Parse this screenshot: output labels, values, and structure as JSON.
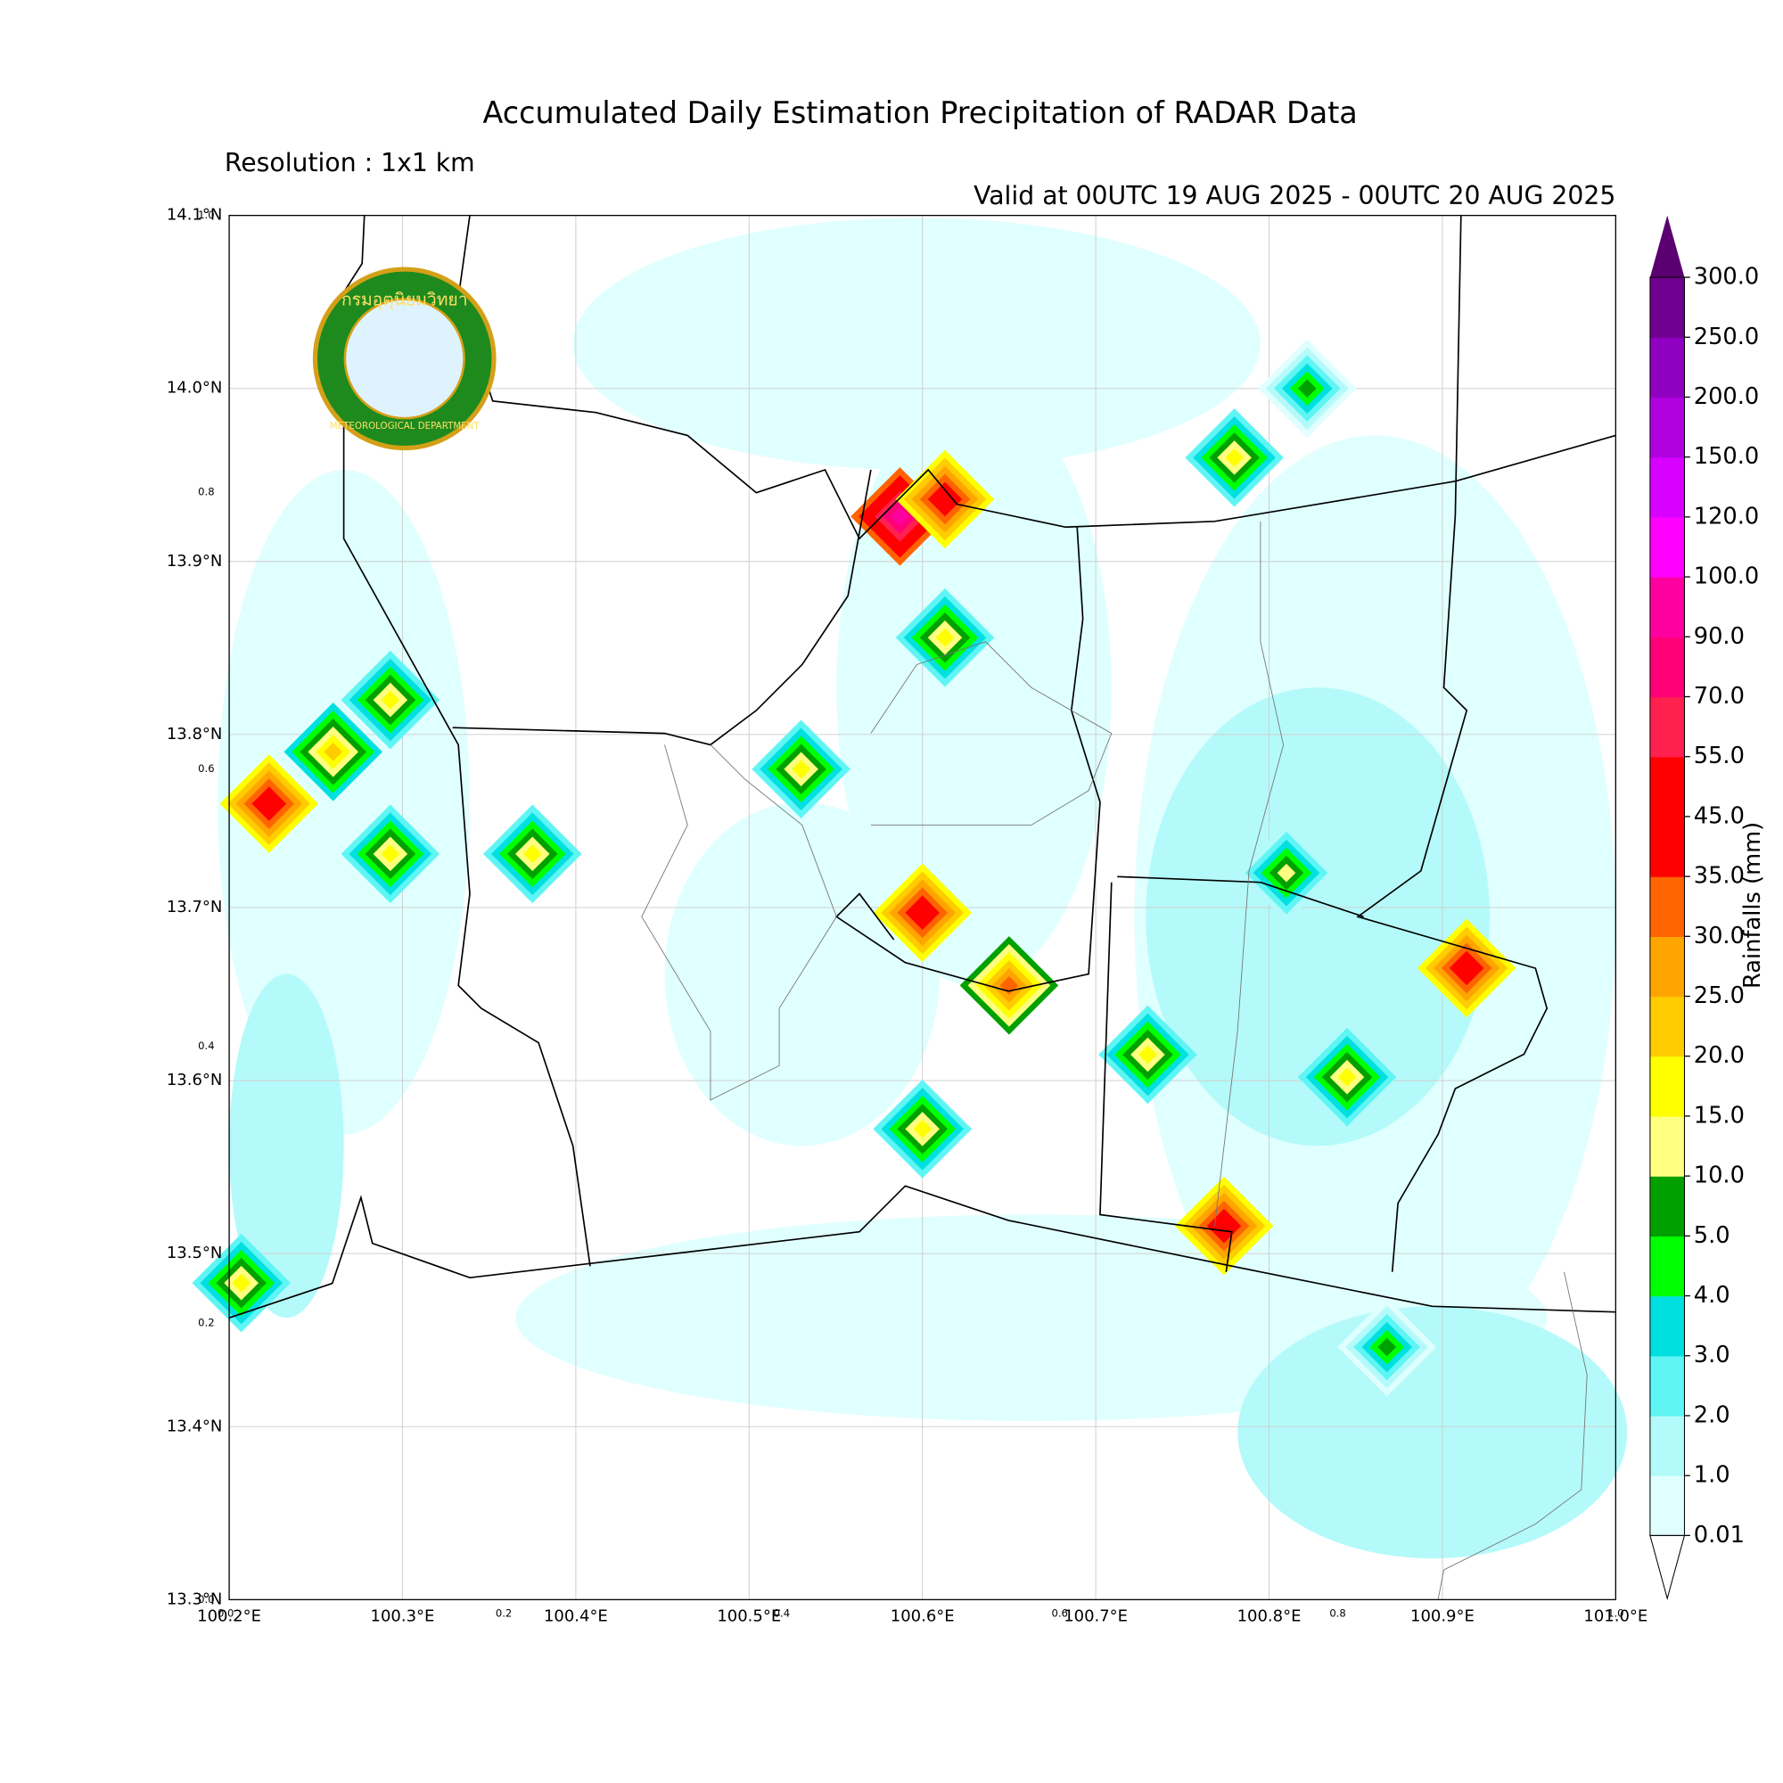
{
  "chart_data": {
    "type": "map",
    "title": "Accumulated Daily Estimation Precipitation of RADAR Data",
    "subtitle": "Resolution : 1x1 km",
    "valid_text": "Valid at 00UTC 19 AUG 2025 - 00UTC 20 AUG 2025",
    "logo": {
      "top_text": "กรมอุตุนิยมวิทยา",
      "bottom_text": "METEOROLOGICAL DEPARTMENT"
    },
    "xlim": [
      100.2,
      101.0
    ],
    "ylim": [
      13.3,
      14.1
    ],
    "xticks": [
      {
        "value": 100.2,
        "label": "100.2°E"
      },
      {
        "value": 100.3,
        "label": "100.3°E"
      },
      {
        "value": 100.4,
        "label": "100.4°E"
      },
      {
        "value": 100.5,
        "label": "100.5°E"
      },
      {
        "value": 100.6,
        "label": "100.6°E"
      },
      {
        "value": 100.7,
        "label": "100.7°E"
      },
      {
        "value": 100.8,
        "label": "100.8°E"
      },
      {
        "value": 100.9,
        "label": "100.9°E"
      },
      {
        "value": 101.0,
        "label": "101.0°E"
      }
    ],
    "yticks": [
      {
        "value": 13.3,
        "label": "13.3°N"
      },
      {
        "value": 13.4,
        "label": "13.4°N"
      },
      {
        "value": 13.5,
        "label": "13.5°N"
      },
      {
        "value": 13.6,
        "label": "13.6°N"
      },
      {
        "value": 13.7,
        "label": "13.7°N"
      },
      {
        "value": 13.8,
        "label": "13.8°N"
      },
      {
        "value": 13.9,
        "label": "13.9°N"
      },
      {
        "value": 14.0,
        "label": "14.0°N"
      },
      {
        "value": 14.1,
        "label": "14.1°N"
      }
    ],
    "overlay_xticks": [
      {
        "value": 0,
        "label": "0.0"
      },
      0.2,
      0.4,
      0.6,
      0.8,
      {
        "value": 1,
        "label": "1.0"
      }
    ],
    "overlay_yticks": [
      {
        "value": 0,
        "label": "0.0"
      },
      0.2,
      0.4,
      0.6,
      0.8,
      {
        "value": 1,
        "label": "1.0"
      }
    ],
    "grid": true,
    "colorbar": {
      "label": "Rainfalls (mm)",
      "levels": [
        {
          "value": 0.01,
          "label": "0.01"
        },
        {
          "value": 1,
          "label": "1.0"
        },
        {
          "value": 2,
          "label": "2.0"
        },
        {
          "value": 3,
          "label": "3.0"
        },
        {
          "value": 4,
          "label": "4.0"
        },
        {
          "value": 5,
          "label": "5.0"
        },
        {
          "value": 10,
          "label": "10.0"
        },
        {
          "value": 15,
          "label": "15.0"
        },
        {
          "value": 20,
          "label": "20.0"
        },
        {
          "value": 25,
          "label": "25.0"
        },
        {
          "value": 30,
          "label": "30.0"
        },
        {
          "value": 35,
          "label": "35.0"
        },
        {
          "value": 45,
          "label": "45.0"
        },
        {
          "value": 55,
          "label": "55.0"
        },
        {
          "value": 70,
          "label": "70.0"
        },
        {
          "value": 90,
          "label": "90.0"
        },
        {
          "value": 100,
          "label": "100.0"
        },
        {
          "value": 120,
          "label": "120.0"
        },
        {
          "value": 150,
          "label": "150.0"
        },
        {
          "value": 200,
          "label": "200.0"
        },
        {
          "value": 250,
          "label": "250.0"
        },
        {
          "value": 300,
          "label": "300.0"
        }
      ],
      "colors": [
        "#e0ffff",
        "#b4fafa",
        "#5ff5f5",
        "#00e0e0",
        "#00ff00",
        "#00a000",
        "#ffff80",
        "#ffff00",
        "#ffcc00",
        "#ffa500",
        "#ff6400",
        "#ff0000",
        "#ff0000",
        "#ff2050",
        "#ff0078",
        "#ff00a0",
        "#ff00ff",
        "#d800ff",
        "#b000e0",
        "#9000c0",
        "#700090"
      ],
      "over_color": "#5a0070"
    },
    "rain_cells": [
      [
        100.587,
        13.926,
        90
      ],
      [
        100.613,
        13.936,
        45
      ],
      [
        100.78,
        13.96,
        15
      ],
      [
        100.223,
        13.76,
        45
      ],
      [
        100.26,
        13.79,
        20
      ],
      [
        100.293,
        13.82,
        15
      ],
      [
        100.293,
        13.731,
        15
      ],
      [
        100.375,
        13.731,
        15
      ],
      [
        100.53,
        13.78,
        15
      ],
      [
        100.6,
        13.697,
        45
      ],
      [
        100.65,
        13.655,
        30
      ],
      [
        100.914,
        13.665,
        45
      ],
      [
        100.774,
        13.516,
        45
      ],
      [
        100.845,
        13.602,
        15
      ],
      [
        100.6,
        13.572,
        15
      ],
      [
        100.613,
        13.856,
        15
      ],
      [
        100.207,
        13.483,
        15
      ],
      [
        100.868,
        13.446,
        5
      ],
      [
        100.822,
        14.0,
        5
      ],
      [
        100.73,
        13.615,
        15
      ],
      [
        100.81,
        13.72,
        10
      ]
    ]
  }
}
